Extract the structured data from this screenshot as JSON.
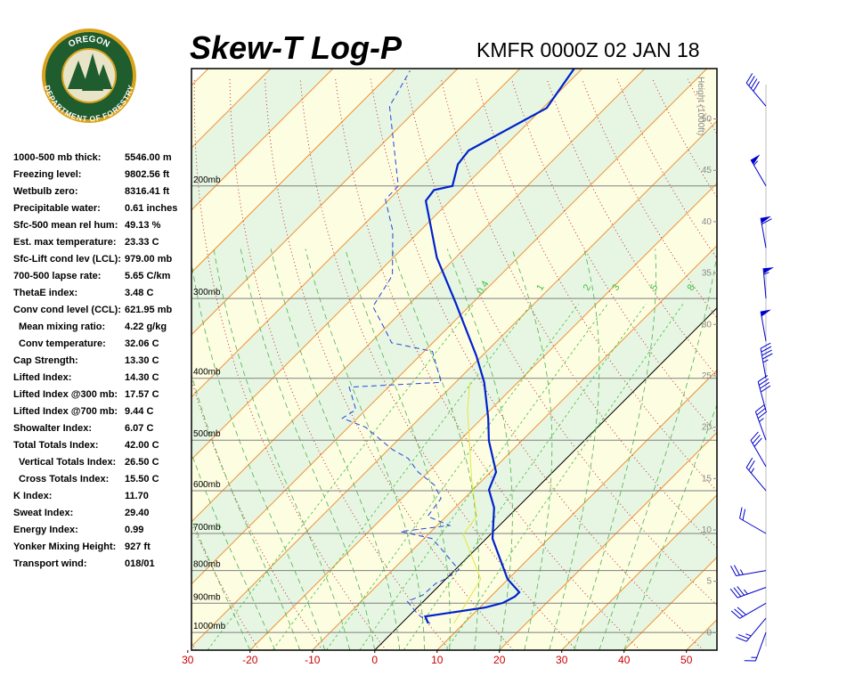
{
  "chart_data": {
    "type": "skew-t",
    "title": "Skew-T Log-P",
    "subtitle": "KMFR 0000Z 02 JAN 18",
    "logo": {
      "top": "OREGON",
      "bottom": "DEPARTMENT OF FORESTRY"
    },
    "xlim": [
      -29.4,
      54.9
    ],
    "xticks": [
      {
        "value": -30,
        "label": "30"
      },
      -20,
      -10,
      0,
      10,
      20,
      30,
      40,
      50
    ],
    "ylim": [
      1066,
      131
    ],
    "yticks": [
      {
        "value": 1000,
        "label": "1000mb"
      },
      {
        "value": 900,
        "label": "900mb"
      },
      {
        "value": 800,
        "label": "800mb"
      },
      {
        "value": 700,
        "label": "700mb"
      },
      {
        "value": 600,
        "label": "600mb"
      },
      {
        "value": 500,
        "label": "500mb"
      },
      {
        "value": 400,
        "label": "400mb"
      },
      {
        "value": 300,
        "label": "300mb"
      },
      {
        "value": 200,
        "label": "200mb"
      }
    ],
    "y2label": "Height (1000ft)",
    "y2lim": [
      -1.7,
      54.9
    ],
    "y2ticks": [
      0,
      5,
      10,
      15,
      20,
      25,
      30,
      35,
      40,
      45,
      50
    ],
    "mixing_ratio": {
      "color": "#40c040",
      "values": [
        0.4,
        1,
        2,
        3,
        5,
        8
      ]
    },
    "temperature": {
      "color": "#0022cc",
      "pressure": [
        968,
        944,
        914,
        899,
        879,
        865,
        825,
        713,
        638,
        598,
        561,
        501,
        462,
        406,
        369,
        304,
        259,
        211,
        203,
        200,
        185,
        176,
        151,
        131
      ],
      "values": [
        4.3,
        2.7,
        10.9,
        13.0,
        13.9,
        13.9,
        9.9,
        1.0,
        -3.7,
        -7.4,
        -9.1,
        -15.3,
        -19.0,
        -25.4,
        -30.9,
        -42.9,
        -53.0,
        -63.9,
        -64.3,
        -62.0,
        -64.6,
        -65.1,
        -59.4,
        -61.3
      ]
    },
    "dewpoint": {
      "color": "#2244dd",
      "pressure": [
        968,
        938,
        894,
        874,
        838,
        825,
        798,
        737,
        713,
        695,
        680,
        658,
        617,
        588,
        561,
        534,
        517,
        477,
        462,
        448,
        413,
        406,
        363,
        352,
        335,
        309,
        276,
        235,
        210,
        200,
        150,
        132
      ],
      "values": [
        4.6,
        1.3,
        -2.6,
        -1.1,
        -0.9,
        -0.1,
        0.6,
        -5.9,
        -8.7,
        -14.9,
        -8.0,
        -13.0,
        -13.7,
        -16.9,
        -21.6,
        -25.4,
        -29.4,
        -37.3,
        -42.4,
        -41.6,
        -46.3,
        -32.3,
        -38.7,
        -46.6,
        -49.9,
        -55.4,
        -57.3,
        -64.4,
        -70.6,
        -70.7,
        -84.9,
        -87.3
      ]
    },
    "parcel": {
      "color": "#e6e640",
      "pressure": [
        968,
        825,
        702,
        658,
        579,
        448,
        406
      ],
      "values": [
        8.4,
        5.6,
        -4.4,
        -5.1,
        -11.6,
        -23.7,
        -27.7
      ]
    },
    "winds": {
      "color": "#0000cc",
      "pressure": [
        1000,
        950,
        900,
        850,
        800,
        700,
        600,
        550,
        500,
        450,
        400,
        350,
        300,
        250,
        200,
        150
      ],
      "direction": [
        200,
        220,
        240,
        250,
        260,
        300,
        320,
        330,
        340,
        345,
        350,
        350,
        355,
        350,
        330,
        320
      ],
      "speed": [
        15,
        25,
        30,
        35,
        25,
        20,
        25,
        30,
        35,
        40,
        45,
        50,
        55,
        60,
        55,
        40
      ]
    },
    "stats": [
      {
        "label": "1000-500 mb thick:",
        "value": "5546.00 m"
      },
      {
        "label": "Freezing level:",
        "value": "9802.56 ft"
      },
      {
        "label": "Wetbulb zero:",
        "value": "8316.41 ft"
      },
      {
        "label": "Precipitable water:",
        "value": "0.61 inches"
      },
      {
        "label": "Sfc-500 mean rel hum:",
        "value": "49.13 %"
      },
      {
        "label": "Est. max temperature:",
        "value": "23.33 C"
      },
      {
        "label": "Sfc-Lift cond lev (LCL):",
        "value": "979.00 mb"
      },
      {
        "label": "700-500 lapse rate:",
        "value": "5.65 C/km"
      },
      {
        "label": "ThetaE index:",
        "value": "3.48 C"
      },
      {
        "label": "Conv cond level (CCL):",
        "value": "621.95 mb"
      },
      {
        "label": "Mean mixing ratio:",
        "value": "4.22 g/kg"
      },
      {
        "label": "Conv temperature:",
        "value": "32.06 C"
      },
      {
        "label": "Cap Strength:",
        "value": "13.30 C"
      },
      {
        "label": "Lifted Index:",
        "value": "14.30 C"
      },
      {
        "label": "Lifted Index @300 mb:",
        "value": "17.57 C"
      },
      {
        "label": "Lifted Index @700 mb:",
        "value": "9.44 C"
      },
      {
        "label": "Showalter Index:",
        "value": "6.07 C"
      },
      {
        "label": "Total Totals Index:",
        "value": "42.00 C"
      },
      {
        "label": "Vertical Totals Index:",
        "value": "26.50 C"
      },
      {
        "label": "Cross Totals Index:",
        "value": "15.50 C"
      },
      {
        "label": "K Index:",
        "value": "11.70"
      },
      {
        "label": "Sweat Index:",
        "value": "29.40"
      },
      {
        "label": "Energy Index:",
        "value": "0.99"
      },
      {
        "label": "Yonker Mixing Height:",
        "value": "927 ft"
      },
      {
        "label": "Transport wind:",
        "value": "018/01"
      }
    ]
  }
}
